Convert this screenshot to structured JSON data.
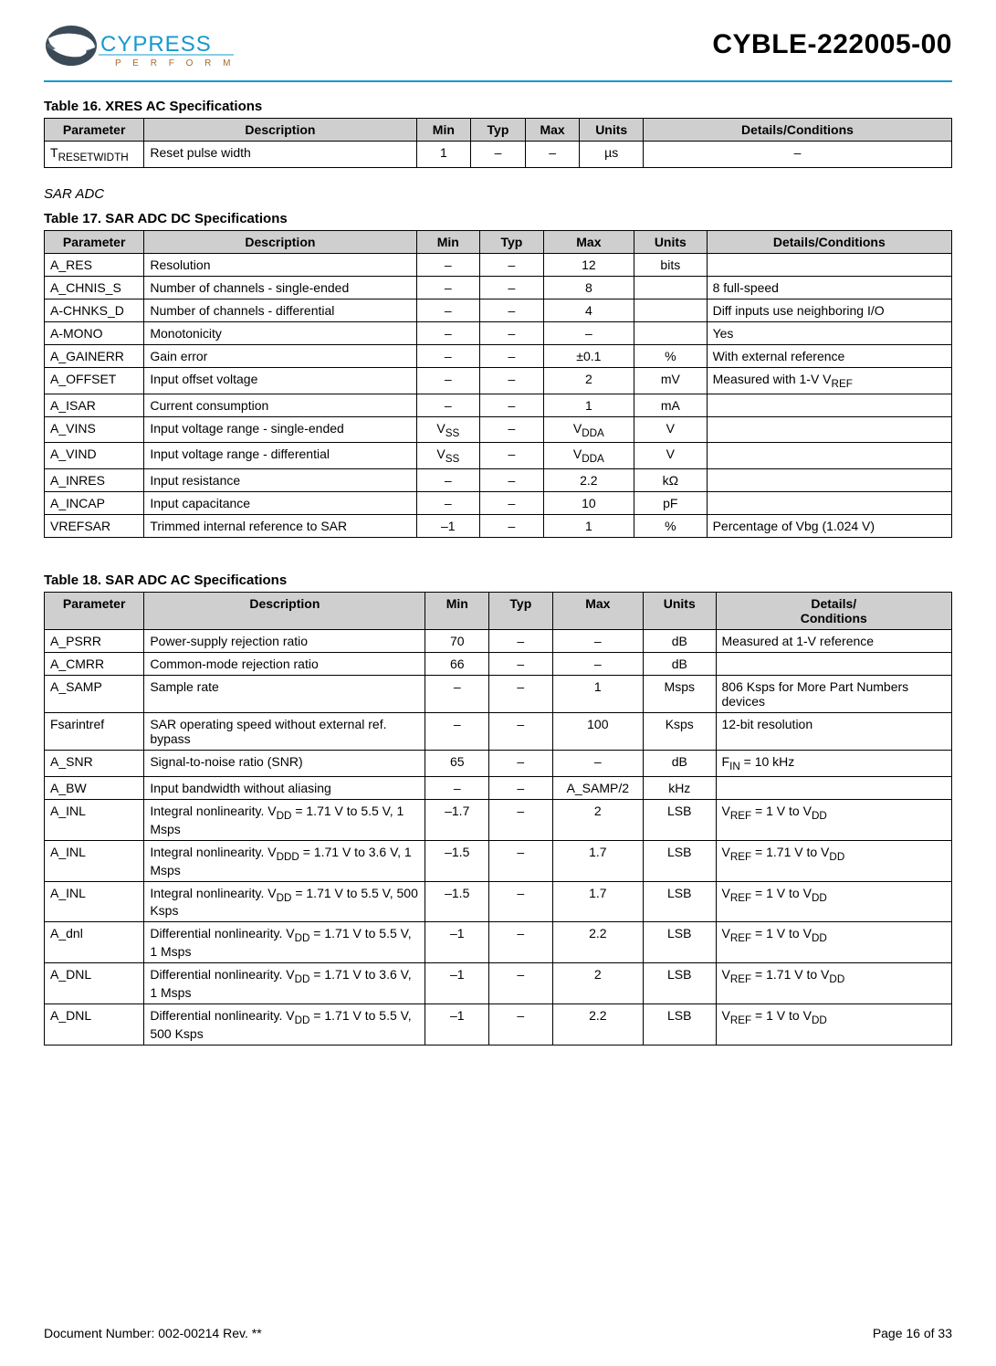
{
  "header": {
    "part_number": "CYBLE-222005-00",
    "logo_text_top": "CYPRESS",
    "logo_text_bottom": "P E R F O R M",
    "logo_colors": {
      "globe": "#3b4a57",
      "text": "#1599cc",
      "perform": "#a66b2e"
    },
    "rule_color": "#1599cc"
  },
  "footer": {
    "docnum": "Document Number: 002-00214 Rev. **",
    "page": "Page 16 of 33"
  },
  "table16": {
    "title": "Table 16.  XRES AC Specifications",
    "columns": [
      "Parameter",
      "Description",
      "Min",
      "Typ",
      "Max",
      "Units",
      "Details/Conditions"
    ],
    "col_widths_pct": [
      11,
      30,
      6,
      6,
      6,
      7,
      34
    ],
    "header_bg": "#cfcfcf",
    "rows": [
      {
        "param_html": "T<sub>RESETWIDTH</sub>",
        "desc": "Reset pulse width",
        "min": "1",
        "typ": "–",
        "max": "–",
        "units": "µs",
        "details": "–"
      }
    ]
  },
  "sar_section": "SAR ADC",
  "table17": {
    "title": "Table 17.  SAR ADC DC Specifications",
    "columns": [
      "Parameter",
      "Description",
      "Min",
      "Typ",
      "Max",
      "Units",
      "Details/Conditions"
    ],
    "col_widths_pct": [
      11,
      30,
      7,
      7,
      10,
      8,
      27
    ],
    "header_bg": "#cfcfcf",
    "rows": [
      {
        "param": "A_RES",
        "desc": "Resolution",
        "min": "–",
        "typ": "–",
        "max": "12",
        "units": "bits",
        "details": ""
      },
      {
        "param": "A_CHNIS_S",
        "desc": "Number of channels - single-ended",
        "min": "–",
        "typ": "–",
        "max": "8",
        "units": "",
        "details": "8 full-speed"
      },
      {
        "param": "A-CHNKS_D",
        "desc": "Number of channels - differential",
        "min": "–",
        "typ": "–",
        "max": "4",
        "units": "",
        "details": "Diff inputs use neighboring I/O"
      },
      {
        "param": "A-MONO",
        "desc": "Monotonicity",
        "min": "–",
        "typ": "–",
        "max": "–",
        "units": "",
        "details": "Yes"
      },
      {
        "param": "A_GAINERR",
        "desc": "Gain error",
        "min": "–",
        "typ": "–",
        "max": "±0.1",
        "units": "%",
        "details": "With external reference"
      },
      {
        "param": "A_OFFSET",
        "desc": "Input offset voltage",
        "min": "–",
        "typ": "–",
        "max": "2",
        "units": "mV",
        "details_html": "Measured with 1-V V<sub>REF</sub>"
      },
      {
        "param": "A_ISAR",
        "desc": "Current consumption",
        "min": "–",
        "typ": "–",
        "max": "1",
        "units": "mA",
        "details": ""
      },
      {
        "param": "A_VINS",
        "desc": "Input voltage range - single-ended",
        "min_html": "V<sub>SS</sub>",
        "typ": "–",
        "max_html": "V<sub>DDA</sub>",
        "units": "V",
        "details": ""
      },
      {
        "param": "A_VIND",
        "desc": "Input voltage range - differential",
        "min_html": "V<sub>SS</sub>",
        "typ": "–",
        "max_html": "V<sub>DDA</sub>",
        "units": "V",
        "details": ""
      },
      {
        "param": "A_INRES",
        "desc": "Input resistance",
        "min": "–",
        "typ": "–",
        "max": "2.2",
        "units": "kΩ",
        "details": ""
      },
      {
        "param": "A_INCAP",
        "desc": "Input capacitance",
        "min": "–",
        "typ": "–",
        "max": "10",
        "units": "pF",
        "details": ""
      },
      {
        "param": "VREFSAR",
        "desc": "Trimmed internal reference to SAR",
        "min": "–1",
        "typ": "–",
        "max": "1",
        "units": "%",
        "details": "Percentage of Vbg (1.024 V)"
      }
    ]
  },
  "table18": {
    "title": "Table 18.  SAR ADC AC Specifications",
    "columns": [
      "Parameter",
      "Description",
      "Min",
      "Typ",
      "Max",
      "Units",
      "Details/\nConditions"
    ],
    "col_widths_pct": [
      11,
      31,
      7,
      7,
      10,
      8,
      26
    ],
    "header_bg": "#cfcfcf",
    "rows": [
      {
        "param": "A_PSRR",
        "desc": "Power-supply rejection ratio",
        "min": "70",
        "typ": "–",
        "max": "–",
        "units": "dB",
        "details": "Measured at 1-V reference"
      },
      {
        "param": "A_CMRR",
        "desc": "Common-mode rejection ratio",
        "min": "66",
        "typ": "–",
        "max": "–",
        "units": "dB",
        "details": ""
      },
      {
        "param": "A_SAMP",
        "desc": "Sample rate",
        "min": "–",
        "typ": "–",
        "max": "1",
        "units": "Msps",
        "details": "806 Ksps for More Part Numbers devices"
      },
      {
        "param": "Fsarintref",
        "desc": "SAR operating speed without external ref. bypass",
        "min": "–",
        "typ": "–",
        "max": "100",
        "units": "Ksps",
        "details": "12-bit resolution"
      },
      {
        "param": "A_SNR",
        "desc": "Signal-to-noise ratio (SNR)",
        "min": "65",
        "typ": "–",
        "max": "–",
        "units": "dB",
        "details_html": "F<sub>IN</sub> = 10 kHz"
      },
      {
        "param": "A_BW",
        "desc": "Input bandwidth without aliasing",
        "min": "–",
        "typ": "–",
        "max": "A_SAMP/2",
        "units": "kHz",
        "details": ""
      },
      {
        "param": "A_INL",
        "desc_html": "Integral nonlinearity. V<sub>DD</sub> = 1.71 V to 5.5 V, 1 Msps",
        "min": "–1.7",
        "typ": "–",
        "max": "2",
        "units": "LSB",
        "details_html": "V<sub>REF</sub> = 1 V to V<sub>DD</sub>"
      },
      {
        "param": "A_INL",
        "desc_html": "Integral nonlinearity. V<sub>DDD</sub> = 1.71 V to 3.6 V, 1 Msps",
        "min": "–1.5",
        "typ": "–",
        "max": "1.7",
        "units": "LSB",
        "details_html": "V<sub>REF</sub> = 1.71 V to V<sub>DD</sub>"
      },
      {
        "param": "A_INL",
        "desc_html": "Integral nonlinearity. V<sub>DD</sub> = 1.71 V to 5.5 V, 500 Ksps",
        "min": "–1.5",
        "typ": "–",
        "max": "1.7",
        "units": "LSB",
        "details_html": "V<sub>REF</sub> = 1 V to V<sub>DD</sub>"
      },
      {
        "param": "A_dnl",
        "desc_html": "Differential nonlinearity. V<sub>DD</sub> = 1.71 V to 5.5 V, 1 Msps",
        "min": "–1",
        "typ": "–",
        "max": "2.2",
        "units": "LSB",
        "details_html": "V<sub>REF</sub> = 1 V to V<sub>DD</sub>"
      },
      {
        "param": "A_DNL",
        "desc_html": "Differential nonlinearity. V<sub>DD</sub> = 1.71 V to 3.6 V, 1 Msps",
        "min": "–1",
        "typ": "–",
        "max": "2",
        "units": "LSB",
        "details_html": "V<sub>REF</sub> = 1.71 V to V<sub>DD</sub>"
      },
      {
        "param": "A_DNL",
        "desc_html": "Differential nonlinearity. V<sub>DD</sub> = 1.71 V to 5.5 V, 500 Ksps",
        "min": "–1",
        "typ": "–",
        "max": "2.2",
        "units": "LSB",
        "details_html": "V<sub>REF</sub> = 1 V to V<sub>DD</sub>"
      }
    ]
  }
}
